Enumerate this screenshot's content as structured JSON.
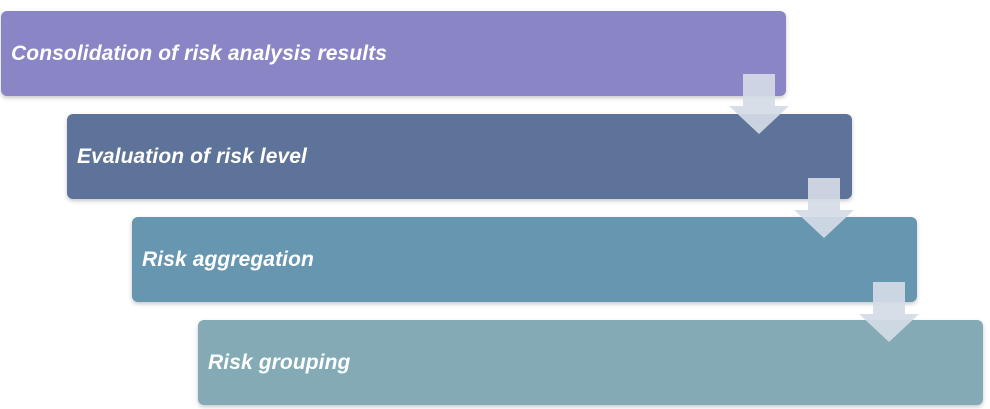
{
  "diagram": {
    "steps": [
      {
        "label": "Consolidation of risk analysis results",
        "color": "#8a86c6"
      },
      {
        "label": "Evaluation of risk level",
        "color": "#5e7399"
      },
      {
        "label": "Risk aggregation",
        "color": "#6797b0"
      },
      {
        "label": "Risk grouping",
        "color": "#84abb5"
      }
    ],
    "arrow_color": "#d5dbe6",
    "arrow_icon": "down-arrow-icon"
  }
}
